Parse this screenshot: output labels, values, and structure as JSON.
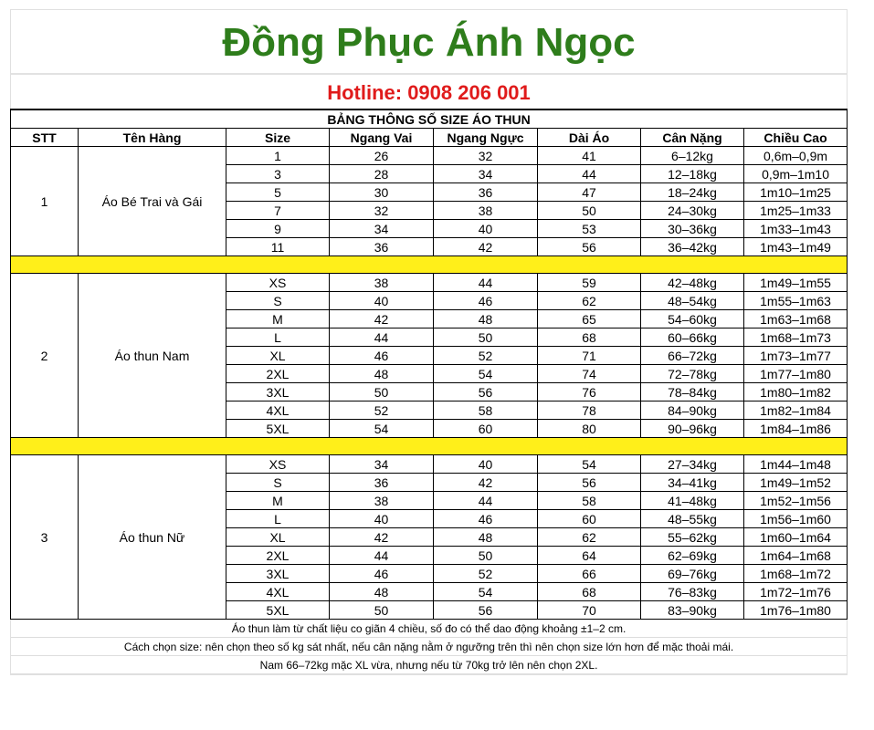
{
  "title": "Đồng Phục Ánh Ngọc",
  "hotline": "Hotline: 0908 206 001",
  "table_title": "BẢNG THÔNG SỐ SIZE ÁO THUN",
  "headers": [
    "STT",
    "Tên Hàng",
    "Size",
    "Ngang Vai",
    "Ngang Ngực",
    "Dài Áo",
    "Cân Nặng",
    "Chiều Cao"
  ],
  "separator_color": "#ffef1a",
  "groups": [
    {
      "stt": "1",
      "name": "Áo Bé Trai và Gái",
      "rows": [
        [
          "1",
          "26",
          "32",
          "41",
          "6–12kg",
          "0,6m–0,9m"
        ],
        [
          "3",
          "28",
          "34",
          "44",
          "12–18kg",
          "0,9m–1m10"
        ],
        [
          "5",
          "30",
          "36",
          "47",
          "18–24kg",
          "1m10–1m25"
        ],
        [
          "7",
          "32",
          "38",
          "50",
          "24–30kg",
          "1m25–1m33"
        ],
        [
          "9",
          "34",
          "40",
          "53",
          "30–36kg",
          "1m33–1m43"
        ],
        [
          "11",
          "36",
          "42",
          "56",
          "36–42kg",
          "1m43–1m49"
        ]
      ]
    },
    {
      "stt": "2",
      "name": "Áo thun Nam",
      "rows": [
        [
          "XS",
          "38",
          "44",
          "59",
          "42–48kg",
          "1m49–1m55"
        ],
        [
          "S",
          "40",
          "46",
          "62",
          "48–54kg",
          "1m55–1m63"
        ],
        [
          "M",
          "42",
          "48",
          "65",
          "54–60kg",
          "1m63–1m68"
        ],
        [
          "L",
          "44",
          "50",
          "68",
          "60–66kg",
          "1m68–1m73"
        ],
        [
          "XL",
          "46",
          "52",
          "71",
          "66–72kg",
          "1m73–1m77"
        ],
        [
          "2XL",
          "48",
          "54",
          "74",
          "72–78kg",
          "1m77–1m80"
        ],
        [
          "3XL",
          "50",
          "56",
          "76",
          "78–84kg",
          "1m80–1m82"
        ],
        [
          "4XL",
          "52",
          "58",
          "78",
          "84–90kg",
          "1m82–1m84"
        ],
        [
          "5XL",
          "54",
          "60",
          "80",
          "90–96kg",
          "1m84–1m86"
        ]
      ]
    },
    {
      "stt": "3",
      "name": "Áo thun Nữ",
      "rows": [
        [
          "XS",
          "34",
          "40",
          "54",
          "27–34kg",
          "1m44–1m48"
        ],
        [
          "S",
          "36",
          "42",
          "56",
          "34–41kg",
          "1m49–1m52"
        ],
        [
          "M",
          "38",
          "44",
          "58",
          "41–48kg",
          "1m52–1m56"
        ],
        [
          "L",
          "40",
          "46",
          "60",
          "48–55kg",
          "1m56–1m60"
        ],
        [
          "XL",
          "42",
          "48",
          "62",
          "55–62kg",
          "1m60–1m64"
        ],
        [
          "2XL",
          "44",
          "50",
          "64",
          "62–69kg",
          "1m64–1m68"
        ],
        [
          "3XL",
          "46",
          "52",
          "66",
          "69–76kg",
          "1m68–1m72"
        ],
        [
          "4XL",
          "48",
          "54",
          "68",
          "76–83kg",
          "1m72–1m76"
        ],
        [
          "5XL",
          "50",
          "56",
          "70",
          "83–90kg",
          "1m76–1m80"
        ]
      ]
    }
  ],
  "notes": [
    "Áo thun làm từ chất liệu co giãn 4 chiều, số đo có thể dao động khoảng ±1–2 cm.",
    "Cách chọn size: nên chọn theo số kg sát nhất, nếu cân nặng nằm ở ngưỡng trên thì nên chọn size lớn hơn để mặc thoải mái.",
    "Nam 66–72kg mặc XL vừa, nhưng nếu từ 70kg trở lên nên chọn 2XL."
  ]
}
